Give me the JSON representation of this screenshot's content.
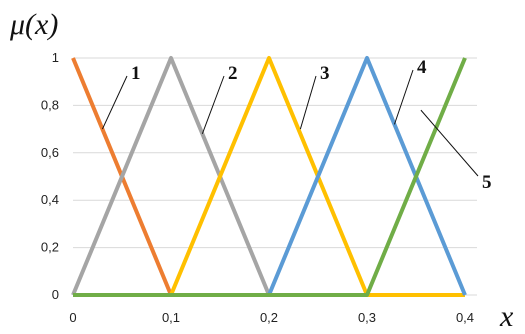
{
  "chart_data": {
    "type": "line",
    "title": "",
    "ylabel": "μ(x)",
    "xlabel": "x",
    "xlim": [
      0,
      0.4
    ],
    "ylim": [
      0,
      1
    ],
    "x_ticks": [
      "0",
      "0,1",
      "0,2",
      "0,3",
      "0,4"
    ],
    "y_ticks": [
      "0",
      "0,2",
      "0,4",
      "0,6",
      "0,8",
      "1"
    ],
    "grid": "horizontal",
    "series": [
      {
        "label": "1",
        "color": "#ed7d31",
        "points": [
          [
            0,
            1
          ],
          [
            0.1,
            0
          ]
        ]
      },
      {
        "label": "2",
        "color": "#a5a5a5",
        "points": [
          [
            0,
            0
          ],
          [
            0.1,
            1
          ],
          [
            0.2,
            0
          ]
        ]
      },
      {
        "label": "3",
        "color": "#ffc000",
        "points": [
          [
            0.1,
            0
          ],
          [
            0.2,
            1
          ],
          [
            0.3,
            0
          ],
          [
            0.4,
            0
          ]
        ]
      },
      {
        "label": "4",
        "color": "#5b9bd5",
        "points": [
          [
            0.2,
            0
          ],
          [
            0.3,
            1
          ],
          [
            0.4,
            0
          ]
        ]
      },
      {
        "label": "5",
        "color": "#70ad47",
        "points": [
          [
            0,
            0
          ],
          [
            0.3,
            0
          ],
          [
            0.4,
            1
          ]
        ]
      }
    ]
  }
}
